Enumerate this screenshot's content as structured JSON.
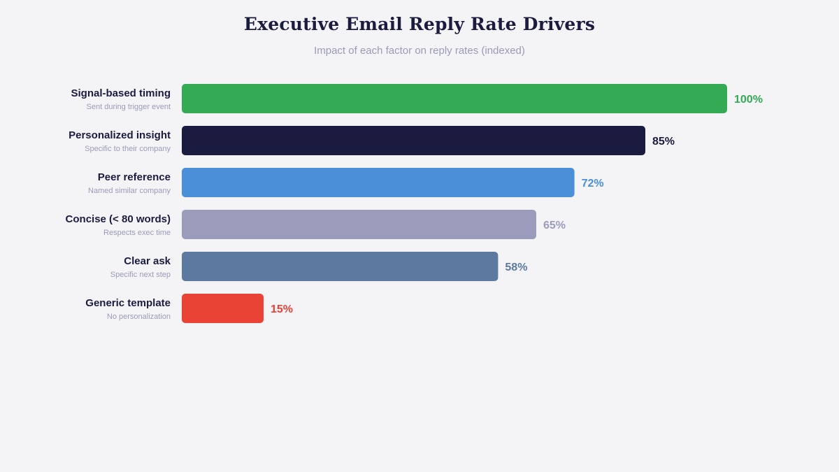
{
  "chart_data": {
    "type": "bar",
    "orientation": "horizontal",
    "title": "Executive Email Reply Rate Drivers",
    "subtitle": "Impact of each factor on reply rates (indexed)",
    "xlim": [
      0,
      100
    ],
    "grid": false,
    "legend": "none",
    "value_suffix": "%",
    "categories": [
      "Signal-based timing",
      "Personalized insight",
      "Peer reference",
      "Concise (< 80 words)",
      "Clear ask",
      "Generic template"
    ],
    "descriptions": [
      "Sent during trigger event",
      "Specific to their company",
      "Named similar company",
      "Respects exec time",
      "Specific next step",
      "No personalization"
    ],
    "values": [
      100,
      85,
      72,
      65,
      58,
      15
    ],
    "colors": [
      "#35aa55",
      "#1b1b40",
      "#4a8fd8",
      "#9b9bbc",
      "#5c7aa0",
      "#e94336"
    ]
  }
}
